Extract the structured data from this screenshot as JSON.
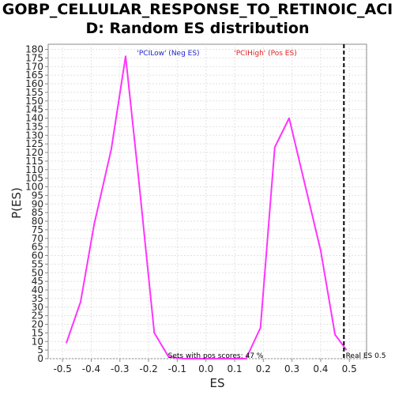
{
  "chart_data": {
    "type": "line",
    "title": "GOBP_CELLULAR_RESPONSE_TO_RETINOIC_ACID: Random ES distribution",
    "title_lines": [
      "GOBP_CELLULAR_RESPONSE_TO_RETINOIC_ACI",
      "D: Random ES distribution"
    ],
    "xlabel": "ES",
    "ylabel": "P(ES)",
    "xlim": [
      -0.55,
      0.56
    ],
    "ylim": [
      0,
      183
    ],
    "x_ticks": [
      -0.5,
      -0.4,
      -0.3,
      -0.2,
      -0.1,
      0.0,
      0.1,
      0.2,
      0.3,
      0.4,
      0.5
    ],
    "x_tick_labels": [
      "-0.5",
      "-0.4",
      "-0.3",
      "-0.2",
      "-0.1",
      "0.0",
      "0.1",
      "0.2",
      "0.3",
      "0.4",
      "0.5"
    ],
    "y_ticks": [
      0,
      5,
      10,
      15,
      20,
      25,
      30,
      35,
      40,
      45,
      50,
      55,
      60,
      65,
      70,
      75,
      80,
      85,
      90,
      95,
      100,
      105,
      110,
      115,
      120,
      125,
      130,
      135,
      140,
      145,
      150,
      155,
      160,
      165,
      170,
      175,
      180
    ],
    "y_tick_labels": [
      "0",
      "5",
      "10",
      "15",
      "20",
      "25",
      "30",
      "35",
      "40",
      "45",
      "50",
      "55",
      "60",
      "65",
      "70",
      "75",
      "80",
      "85",
      "90",
      "95",
      "100",
      "105",
      "110",
      "115",
      "120",
      "125",
      "130",
      "135",
      "140",
      "145",
      "150",
      "155",
      "160",
      "165",
      "170",
      "175",
      "180"
    ],
    "grid": true,
    "series": [
      {
        "color": "#ff33ff",
        "points": [
          [
            -0.487,
            9
          ],
          [
            -0.437,
            33
          ],
          [
            -0.39,
            78
          ],
          [
            -0.33,
            122
          ],
          [
            -0.28,
            176
          ],
          [
            -0.235,
            105
          ],
          [
            -0.18,
            15
          ],
          [
            -0.13,
            1
          ],
          [
            -0.08,
            0
          ],
          [
            0.0,
            0
          ],
          [
            0.1,
            0
          ],
          [
            0.14,
            0
          ],
          [
            0.19,
            18
          ],
          [
            0.24,
            123
          ],
          [
            0.29,
            140
          ],
          [
            0.34,
            105
          ],
          [
            0.4,
            63
          ],
          [
            0.45,
            14
          ],
          [
            0.49,
            5
          ]
        ]
      }
    ],
    "real_es": 0.481,
    "real_es_color": "#000000",
    "annotations": {
      "neg_label": "'PCILow' (Neg ES)",
      "neg_color": "#2222cc",
      "pos_label": "'PCIHigh' (Pos ES)",
      "pos_color": "#dd2222",
      "pos_scores": "Sets with pos scores: 47 %",
      "real_es_label": "Real ES 0.5"
    }
  }
}
